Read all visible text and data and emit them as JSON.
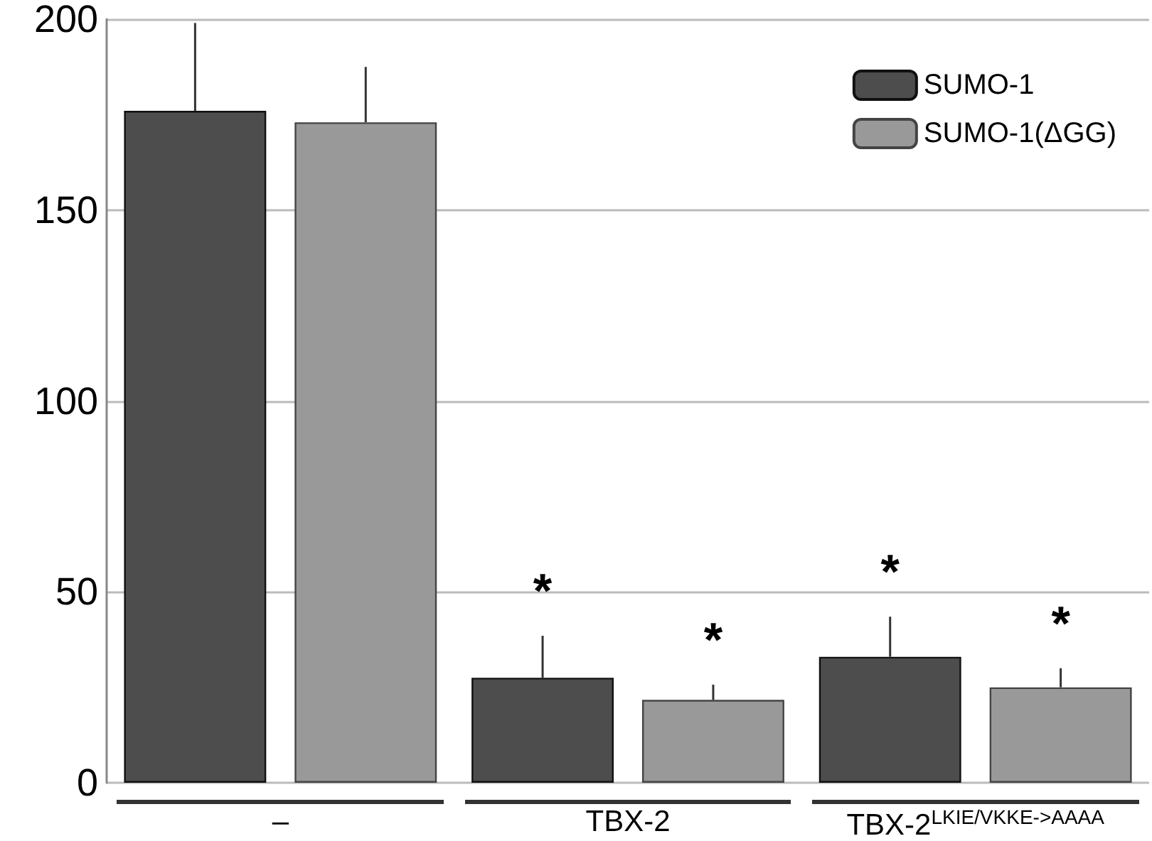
{
  "chart_data": {
    "type": "bar",
    "categories": [
      "–",
      "TBX-2",
      "TBX-2$^{LKIE/VKKE->AAAA}$"
    ],
    "series": [
      {
        "name": "SUMO-1",
        "color": "#4d4d4d",
        "values": [
          176,
          27.5,
          33
        ],
        "errors": [
          23,
          11,
          10.5
        ],
        "value_labels": [
          null,
          "*",
          "*"
        ]
      },
      {
        "name": "SUMO-1(ΔGG)",
        "color": "#999999",
        "values": [
          173,
          21.7,
          25
        ],
        "errors": [
          14.5,
          4,
          5
        ],
        "value_labels": [
          null,
          "*",
          "*"
        ]
      }
    ],
    "ylim": [
      0,
      200
    ],
    "yticks": [
      0,
      50,
      100,
      150,
      200
    ],
    "grid": "y",
    "legend": "top right"
  }
}
